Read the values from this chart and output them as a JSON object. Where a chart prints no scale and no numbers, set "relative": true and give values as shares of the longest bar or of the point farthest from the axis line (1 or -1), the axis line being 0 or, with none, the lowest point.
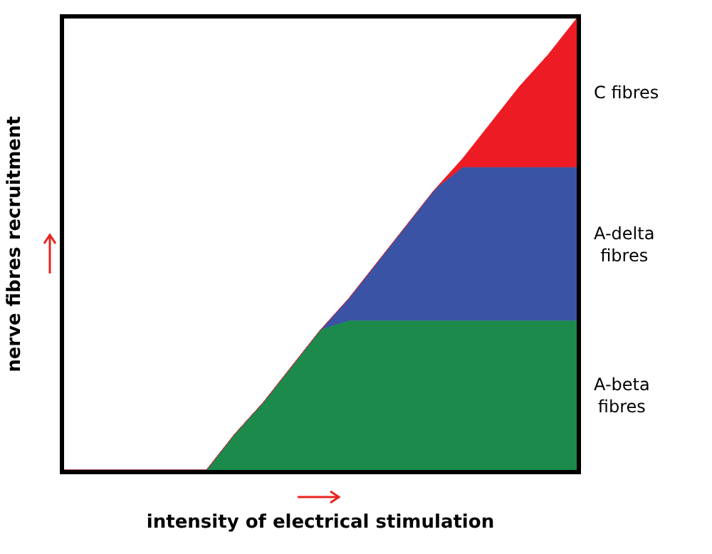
{
  "chart_data": {
    "type": "area",
    "xlabel": "intensity of electrical stimulation",
    "ylabel": "nerve fibres recruitment",
    "relative": true,
    "stacked": true,
    "categories": [
      null,
      null,
      null,
      null,
      null,
      null,
      null,
      null,
      null,
      null,
      null,
      null,
      null,
      null,
      null,
      null,
      null,
      null,
      null
    ],
    "series": [
      {
        "name": "A-beta fibres",
        "color": "#1b8a4b",
        "values": [
          0,
          0,
          0,
          0,
          0,
          0,
          0.08,
          0.15,
          0.23,
          0.31,
          0.33,
          0.33,
          0.33,
          0.33,
          0.33,
          0.33,
          0.33,
          0.33,
          0.33
        ]
      },
      {
        "name": "A-delta fibres",
        "color": "#3a53a4",
        "values": [
          0,
          0,
          0,
          0,
          0,
          0,
          0,
          0,
          0,
          0,
          0.05,
          0.13,
          0.21,
          0.29,
          0.34,
          0.34,
          0.34,
          0.34,
          0.34
        ]
      },
      {
        "name": "C fibres",
        "color": "#ed1c24",
        "values": [
          0,
          0,
          0,
          0,
          0,
          0,
          0,
          0,
          0,
          0,
          0,
          0,
          0,
          0,
          0.02,
          0.1,
          0.18,
          0.25,
          0.33
        ]
      }
    ]
  }
}
